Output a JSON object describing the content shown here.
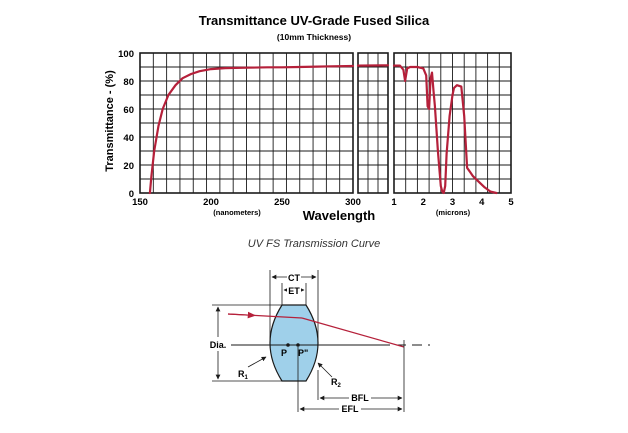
{
  "chart_data": {
    "type": "line",
    "title": "Transmittance UV-Grade Fused Silica",
    "subtitle": "(10mm Thickness)",
    "xlabel": "Wavelength",
    "ylabel": "Transmittance - (%)",
    "ylim": [
      0,
      100
    ],
    "yticks": [
      "0",
      "20",
      "40",
      "60",
      "80",
      "100"
    ],
    "grid": true,
    "panels": [
      {
        "name": "uv",
        "unit_label": "(nanometers)",
        "xlim": [
          150,
          300
        ],
        "xticks": [
          "150",
          "200",
          "250",
          "300"
        ],
        "x": [
          157,
          158,
          160,
          163,
          166,
          170,
          175,
          180,
          186,
          192,
          200,
          210,
          225,
          240,
          250,
          262,
          275,
          285,
          300
        ],
        "y": [
          0,
          12,
          30,
          48,
          60,
          70,
          77,
          82,
          85,
          87,
          88.5,
          89.2,
          89.5,
          89.8,
          89.8,
          90,
          90.3,
          90.5,
          90.7
        ]
      },
      {
        "name": "visible",
        "xlim": [
          0,
          1
        ],
        "xticks": [],
        "x": [
          0,
          1
        ],
        "y": [
          91,
          91.2
        ]
      },
      {
        "name": "ir",
        "unit_label": "(microns)",
        "xlim": [
          1,
          5
        ],
        "xticks": [
          "1",
          "2",
          "3",
          "4",
          "5"
        ],
        "x": [
          1,
          1.2,
          1.32,
          1.38,
          1.45,
          1.55,
          1.8,
          2.0,
          2.1,
          2.15,
          2.2,
          2.25,
          2.3,
          2.35,
          2.4,
          2.5,
          2.6,
          2.65,
          2.7,
          2.75,
          2.8,
          2.9,
          3.0,
          3.05,
          3.15,
          3.3,
          3.4,
          3.5,
          3.6,
          3.7,
          3.9,
          4.1,
          4.3,
          4.5
        ],
        "y": [
          91,
          91,
          88,
          80,
          89,
          90,
          90,
          89,
          84,
          62,
          60,
          82,
          86,
          73,
          62,
          30,
          5,
          1,
          0,
          5,
          28,
          55,
          70,
          75,
          77,
          76,
          55,
          18,
          15,
          12,
          8,
          4,
          1,
          0
        ]
      }
    ],
    "series_color": "#b5203a"
  },
  "caption": "UV FS Transmission Curve",
  "lens": {
    "labels": {
      "ct": "CT",
      "et": "ET",
      "dia": "Dia.",
      "p": "P",
      "p_prime": "P\"",
      "r1": "R",
      "r1_sub": "1",
      "r2": "R",
      "r2_sub": "2",
      "bfl": "BFL",
      "efl": "EFL"
    },
    "lens_color": "#9fd0ea",
    "ray_color": "#b5203a"
  }
}
